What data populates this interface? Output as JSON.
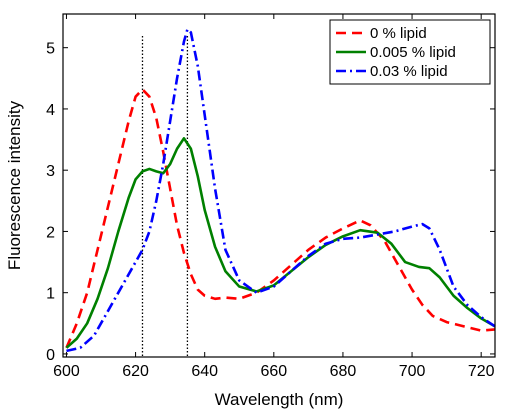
{
  "chart_data": {
    "type": "line",
    "title": "",
    "xlabel": "Wavelength (nm)",
    "ylabel": "Fluorescence intensity",
    "xlim": [
      599,
      724
    ],
    "ylim": [
      -0.05,
      5.55
    ],
    "xticks": [
      600,
      620,
      640,
      660,
      680,
      700,
      720
    ],
    "yticks": [
      0,
      1,
      2,
      3,
      4,
      5
    ],
    "grid": false,
    "legend_position": "top-right",
    "vlines": [
      {
        "x": 622,
        "style": "dotted",
        "color": "#000000"
      },
      {
        "x": 635,
        "style": "dotted",
        "color": "#000000"
      }
    ],
    "series": [
      {
        "name": "0 % lipid",
        "color": "#ff0000",
        "dash": "dashed",
        "x": [
          600,
          603,
          606,
          609,
          612,
          615,
          618,
          620,
          622,
          624,
          626,
          628,
          630,
          632,
          634,
          636,
          638,
          640,
          643,
          646,
          650,
          655,
          660,
          665,
          670,
          675,
          680,
          685,
          688,
          692,
          696,
          700,
          703,
          706,
          710,
          715,
          720,
          724
        ],
        "y": [
          0.1,
          0.5,
          1.0,
          1.7,
          2.4,
          3.1,
          3.8,
          4.2,
          4.32,
          4.2,
          3.85,
          3.3,
          2.7,
          2.1,
          1.65,
          1.3,
          1.05,
          0.95,
          0.9,
          0.92,
          0.9,
          1.0,
          1.2,
          1.45,
          1.7,
          1.9,
          2.05,
          2.18,
          2.1,
          1.85,
          1.45,
          1.05,
          0.8,
          0.62,
          0.52,
          0.45,
          0.38,
          0.4
        ]
      },
      {
        "name": "0.005 % lipid",
        "color": "#008000",
        "dash": "solid",
        "x": [
          600,
          603,
          606,
          609,
          612,
          615,
          618,
          620,
          622,
          624,
          626,
          628,
          630,
          632,
          634,
          636,
          638,
          640,
          643,
          646,
          650,
          655,
          660,
          665,
          670,
          675,
          680,
          685,
          690,
          694,
          698,
          702,
          705,
          708,
          712,
          716,
          720,
          724
        ],
        "y": [
          0.1,
          0.25,
          0.5,
          0.9,
          1.4,
          2.0,
          2.55,
          2.85,
          2.98,
          3.02,
          2.98,
          2.95,
          3.1,
          3.35,
          3.52,
          3.35,
          2.9,
          2.35,
          1.75,
          1.35,
          1.1,
          1.02,
          1.12,
          1.35,
          1.58,
          1.78,
          1.92,
          2.02,
          1.98,
          1.8,
          1.5,
          1.42,
          1.4,
          1.25,
          0.95,
          0.75,
          0.58,
          0.45
        ]
      },
      {
        "name": "0.03 % lipid",
        "color": "#0000ff",
        "dash": "dashdot",
        "x": [
          600,
          604,
          608,
          611,
          614,
          617,
          620,
          622,
          624,
          626,
          628,
          630,
          632,
          634,
          635,
          636,
          638,
          640,
          643,
          646,
          650,
          655,
          660,
          665,
          670,
          675,
          680,
          685,
          690,
          695,
          700,
          703,
          705,
          708,
          712,
          716,
          720,
          724
        ],
        "y": [
          0.05,
          0.1,
          0.3,
          0.6,
          0.9,
          1.2,
          1.5,
          1.7,
          2.0,
          2.5,
          3.1,
          3.8,
          4.5,
          5.1,
          5.3,
          5.25,
          4.7,
          3.9,
          2.7,
          1.7,
          1.2,
          1.0,
          1.1,
          1.35,
          1.6,
          1.8,
          1.88,
          1.9,
          1.95,
          2.0,
          2.08,
          2.12,
          2.05,
          1.7,
          1.1,
          0.8,
          0.6,
          0.45
        ]
      }
    ]
  }
}
